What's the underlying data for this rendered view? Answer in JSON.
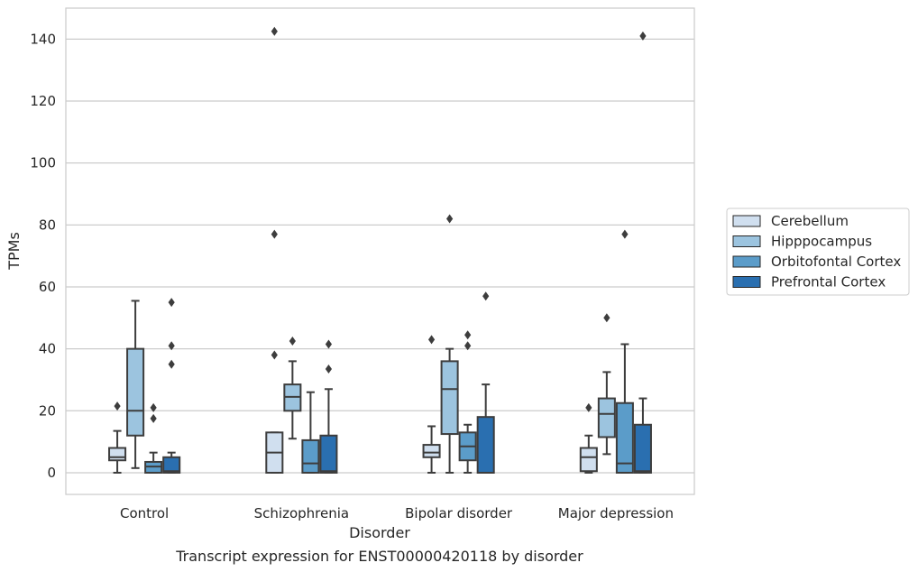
{
  "chart_data": {
    "type": "box",
    "title": "",
    "caption": "Transcript expression for ENST00000420118 by disorder",
    "xlabel": "Disorder",
    "ylabel": "TPMs",
    "ylim": [
      -7,
      150
    ],
    "yticks": [
      0,
      20,
      40,
      60,
      80,
      100,
      120,
      140
    ],
    "grid": "horizontal",
    "legend_position": "right",
    "categories": [
      "Control",
      "Schizophrenia",
      "Bipolar disorder",
      "Major depression"
    ],
    "series": [
      {
        "name": "Cerebellum",
        "color": "#d0dfef",
        "boxes": [
          {
            "whisker_low": 0,
            "q1": 4,
            "median": 5,
            "q3": 8,
            "whisker_high": 13.5,
            "outliers": [
              21.5
            ]
          },
          {
            "whisker_low": 0,
            "q1": 0,
            "median": 6.5,
            "q3": 13,
            "whisker_high": 13,
            "outliers": [
              38,
              77,
              142.5
            ]
          },
          {
            "whisker_low": 0,
            "q1": 5,
            "median": 6.5,
            "q3": 9,
            "whisker_high": 15,
            "outliers": [
              43
            ]
          },
          {
            "whisker_low": 0,
            "q1": 0.5,
            "median": 5,
            "q3": 8,
            "whisker_high": 12,
            "outliers": [
              21
            ]
          }
        ]
      },
      {
        "name": "Hipppocampus",
        "color": "#9cc4df",
        "boxes": [
          {
            "whisker_low": 1.5,
            "q1": 12,
            "median": 20,
            "q3": 40,
            "whisker_high": 55.5,
            "outliers": []
          },
          {
            "whisker_low": 11,
            "q1": 20,
            "median": 24.5,
            "q3": 28.5,
            "whisker_high": 36,
            "outliers": [
              42.5
            ]
          },
          {
            "whisker_low": 0,
            "q1": 12.5,
            "median": 27,
            "q3": 36,
            "whisker_high": 40,
            "outliers": [
              82
            ]
          },
          {
            "whisker_low": 6,
            "q1": 11.5,
            "median": 19,
            "q3": 24,
            "whisker_high": 32.5,
            "outliers": [
              50
            ]
          }
        ]
      },
      {
        "name": "Orbitofontal Cortex",
        "color": "#5b9cc9",
        "boxes": [
          {
            "whisker_low": 0,
            "q1": 0,
            "median": 2,
            "q3": 3.5,
            "whisker_high": 6.5,
            "outliers": [
              17.5,
              21
            ]
          },
          {
            "whisker_low": 0,
            "q1": 0,
            "median": 3,
            "q3": 10.5,
            "whisker_high": 26,
            "outliers": []
          },
          {
            "whisker_low": 0,
            "q1": 4,
            "median": 8.5,
            "q3": 13,
            "whisker_high": 15.5,
            "outliers": [
              41,
              44.5
            ]
          },
          {
            "whisker_low": 0,
            "q1": 0,
            "median": 3,
            "q3": 22.5,
            "whisker_high": 41.5,
            "outliers": [
              77
            ]
          }
        ]
      },
      {
        "name": "Prefrontal Cortex",
        "color": "#2a6fb0",
        "boxes": [
          {
            "whisker_low": 0,
            "q1": 0,
            "median": 0.5,
            "q3": 5,
            "whisker_high": 6.5,
            "outliers": [
              35,
              41,
              55
            ]
          },
          {
            "whisker_low": 0,
            "q1": 0,
            "median": 0.5,
            "q3": 12,
            "whisker_high": 27,
            "outliers": [
              33.5,
              41.5
            ]
          },
          {
            "whisker_low": 0,
            "q1": 0,
            "median": 0,
            "q3": 18,
            "whisker_high": 28.5,
            "outliers": [
              57
            ]
          },
          {
            "whisker_low": 0,
            "q1": 0,
            "median": 0.5,
            "q3": 15.5,
            "whisker_high": 24,
            "outliers": [
              141
            ]
          }
        ]
      }
    ]
  }
}
